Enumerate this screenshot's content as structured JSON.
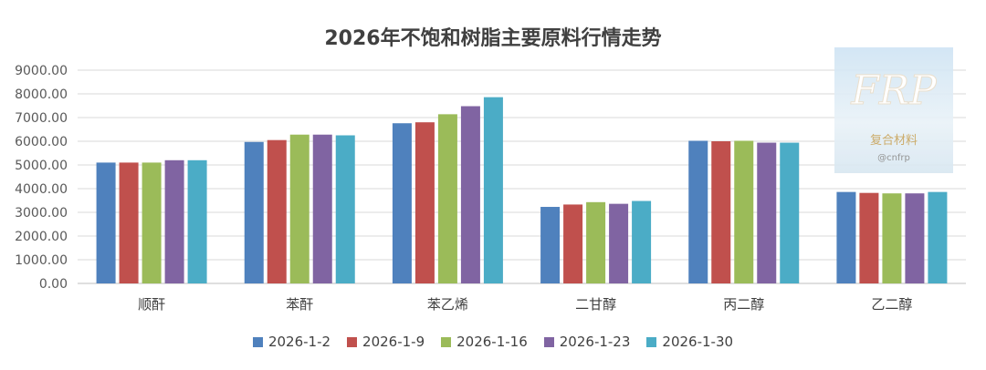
{
  "chart_data": {
    "type": "bar",
    "title": "2026年不饱和树脂主要原料行情走势",
    "categories": [
      "顺酐",
      "苯酐",
      "苯乙烯",
      "二甘醇",
      "丙二醇",
      "乙二醇"
    ],
    "series": [
      {
        "name": "2026-1-2",
        "color": "#4F81BD",
        "values": [
          5100,
          5970,
          6760,
          3230,
          6020,
          3860
        ]
      },
      {
        "name": "2026-1-9",
        "color": "#C0504D",
        "values": [
          5100,
          6050,
          6800,
          3330,
          6000,
          3820
        ]
      },
      {
        "name": "2026-1-16",
        "color": "#9BBB59",
        "values": [
          5100,
          6280,
          7140,
          3430,
          6020,
          3800
        ]
      },
      {
        "name": "2026-1-23",
        "color": "#8064A2",
        "values": [
          5200,
          6280,
          7480,
          3360,
          5940,
          3800
        ]
      },
      {
        "name": "2026-1-30",
        "color": "#4BACC6",
        "values": [
          5200,
          6250,
          7860,
          3480,
          5940,
          3860
        ]
      }
    ],
    "y_ticks": [
      "0.00",
      "1000.00",
      "2000.00",
      "3000.00",
      "4000.00",
      "5000.00",
      "6000.00",
      "7000.00",
      "8000.00",
      "9000.00"
    ],
    "ylim": [
      0,
      9000
    ],
    "grid": true,
    "legend_position": "bottom"
  },
  "watermark": {
    "logo_text": "FRP",
    "line1": "复合材料",
    "line2": "@cnfrp"
  }
}
